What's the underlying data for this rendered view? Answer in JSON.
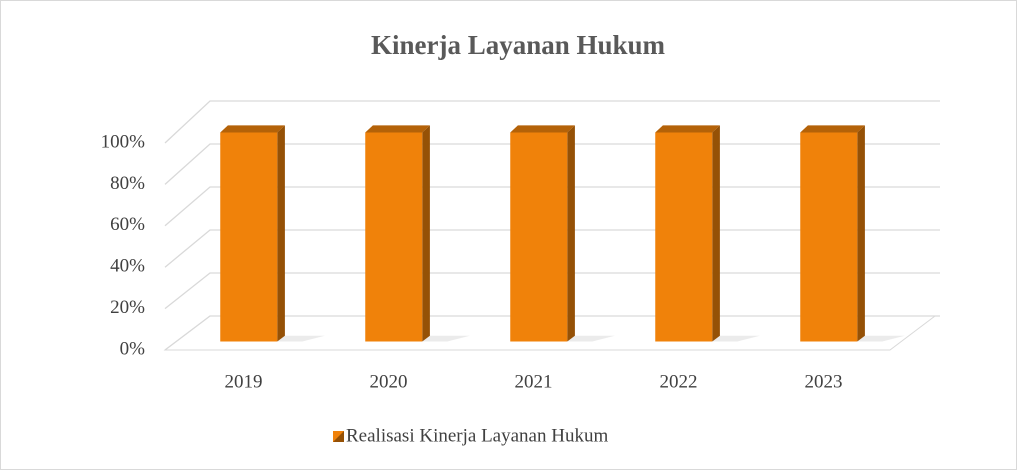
{
  "chart_data": {
    "type": "bar3d",
    "title": "Kinerja Layanan Hukum",
    "categories": [
      "2019",
      "2020",
      "2021",
      "2022",
      "2023"
    ],
    "series": [
      {
        "name": "Realisasi Kinerja Layanan Hukum",
        "color": "#f0820a",
        "values": [
          100,
          100,
          100,
          100,
          100
        ]
      }
    ],
    "ylim": [
      0,
      100
    ],
    "yticks": [
      {
        "value": 0,
        "label": "0%"
      },
      {
        "value": 20,
        "label": "20%"
      },
      {
        "value": 40,
        "label": "40%"
      },
      {
        "value": 60,
        "label": "60%"
      },
      {
        "value": 80,
        "label": "80%"
      },
      {
        "value": 100,
        "label": "100%"
      }
    ],
    "grid": true,
    "legend": "bottom"
  }
}
